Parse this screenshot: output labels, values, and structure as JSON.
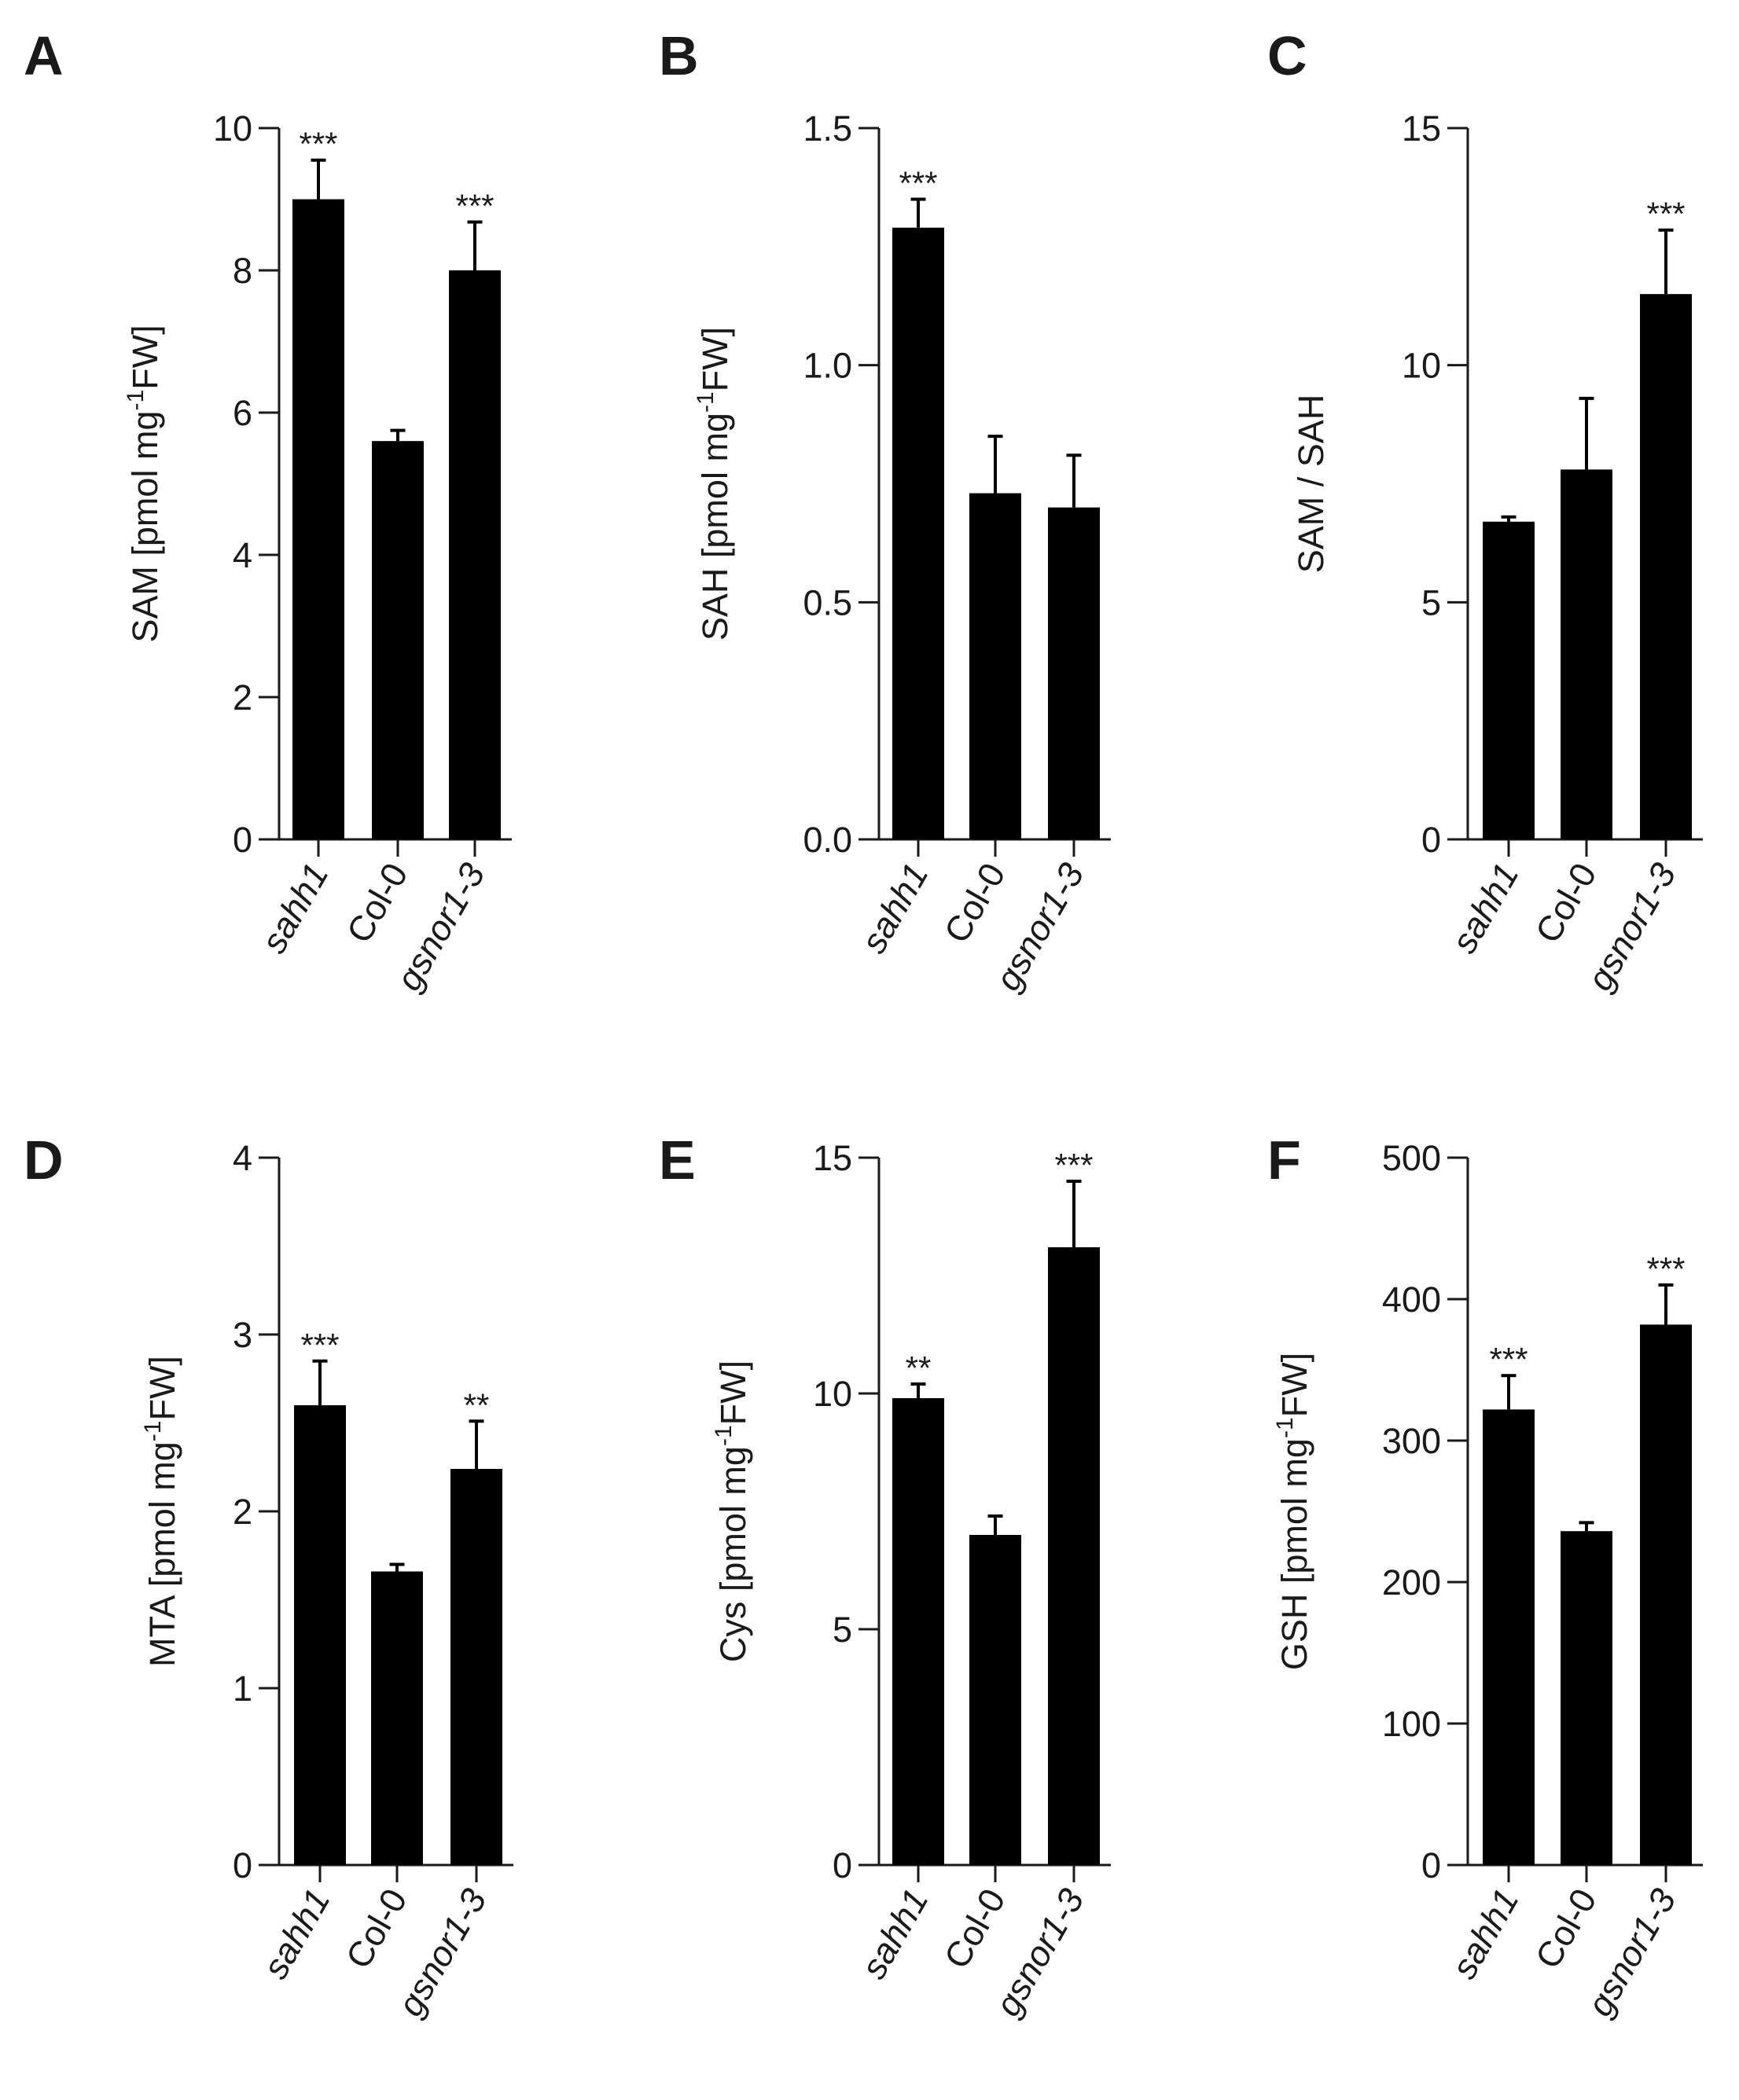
{
  "figure": {
    "bar_color": "#000000",
    "axis_color": "#1a1a1a",
    "tick_label_color": "#1a1a1a"
  },
  "chart_data": [
    {
      "panel": "A",
      "type": "bar",
      "categories": [
        "sahh1",
        "Col-0",
        "gsnor1-3"
      ],
      "values": [
        9.0,
        5.6,
        8.0
      ],
      "errors": [
        0.55,
        0.15,
        0.68
      ],
      "significance": [
        "***",
        "",
        "***"
      ],
      "ylabel_main": "SAM [pmol mg",
      "ylabel_sup": "-1",
      "ylabel_tail": "FW]",
      "yticks": [
        0,
        2,
        4,
        6,
        8,
        10
      ],
      "ytick_labels": [
        "0",
        "2",
        "4",
        "6",
        "8",
        "10"
      ],
      "ylim": [
        0,
        10
      ]
    },
    {
      "panel": "B",
      "type": "bar",
      "categories": [
        "sahh1",
        "Col-0",
        "gsnor1-3"
      ],
      "values": [
        1.29,
        0.73,
        0.7
      ],
      "errors": [
        0.06,
        0.12,
        0.11
      ],
      "significance": [
        "***",
        "",
        ""
      ],
      "ylabel_main": "SAH [pmol mg",
      "ylabel_sup": "-1",
      "ylabel_tail": "FW]",
      "yticks": [
        0,
        0.5,
        1.0,
        1.5
      ],
      "ytick_labels": [
        "0.0",
        "0.5",
        "1.0",
        "1.5"
      ],
      "ylim": [
        0,
        1.5
      ]
    },
    {
      "panel": "C",
      "type": "bar",
      "categories": [
        "sahh1",
        "Col-0",
        "gsnor1-3"
      ],
      "values": [
        6.7,
        7.8,
        11.5
      ],
      "errors": [
        0.1,
        1.5,
        1.35
      ],
      "significance": [
        "",
        "",
        "***"
      ],
      "ylabel_main": "SAM / SAH",
      "ylabel_sup": "",
      "ylabel_tail": "",
      "yticks": [
        0,
        5,
        10,
        15
      ],
      "ytick_labels": [
        "0",
        "5",
        "10",
        "15"
      ],
      "ylim": [
        0,
        15
      ]
    },
    {
      "panel": "D",
      "type": "bar",
      "categories": [
        "sahh1",
        "Col-0",
        "gsnor1-3"
      ],
      "values": [
        2.6,
        1.66,
        2.24
      ],
      "errors": [
        0.25,
        0.04,
        0.27
      ],
      "significance": [
        "***",
        "",
        "**"
      ],
      "ylabel_main": "MTA [pmol mg",
      "ylabel_sup": "-1",
      "ylabel_tail": "FW]",
      "yticks": [
        0,
        1,
        2,
        3,
        4
      ],
      "ytick_labels": [
        "0",
        "1",
        "2",
        "3",
        "4"
      ],
      "ylim": [
        0,
        4
      ]
    },
    {
      "panel": "E",
      "type": "bar",
      "categories": [
        "sahh1",
        "Col-0",
        "gsnor1-3"
      ],
      "values": [
        9.9,
        7.0,
        13.1
      ],
      "errors": [
        0.3,
        0.4,
        1.4
      ],
      "significance": [
        "**",
        "",
        "***"
      ],
      "ylabel_main": "Cys [pmol mg",
      "ylabel_sup": "-1",
      "ylabel_tail": "FW]",
      "yticks": [
        0,
        5,
        10,
        15
      ],
      "ytick_labels": [
        "0",
        "5",
        "10",
        "15"
      ],
      "ylim": [
        0,
        15
      ]
    },
    {
      "panel": "F",
      "type": "bar",
      "categories": [
        "sahh1",
        "Col-0",
        "gsnor1-3"
      ],
      "values": [
        322,
        236,
        382
      ],
      "errors": [
        24,
        6,
        28
      ],
      "significance": [
        "***",
        "",
        "***"
      ],
      "ylabel_main": "GSH [pmol mg",
      "ylabel_sup": "-1",
      "ylabel_tail": "FW]",
      "yticks": [
        0,
        100,
        200,
        300,
        400,
        500
      ],
      "ytick_labels": [
        "0",
        "100",
        "200",
        "300",
        "400",
        "500"
      ],
      "ylim": [
        0,
        500
      ]
    }
  ]
}
